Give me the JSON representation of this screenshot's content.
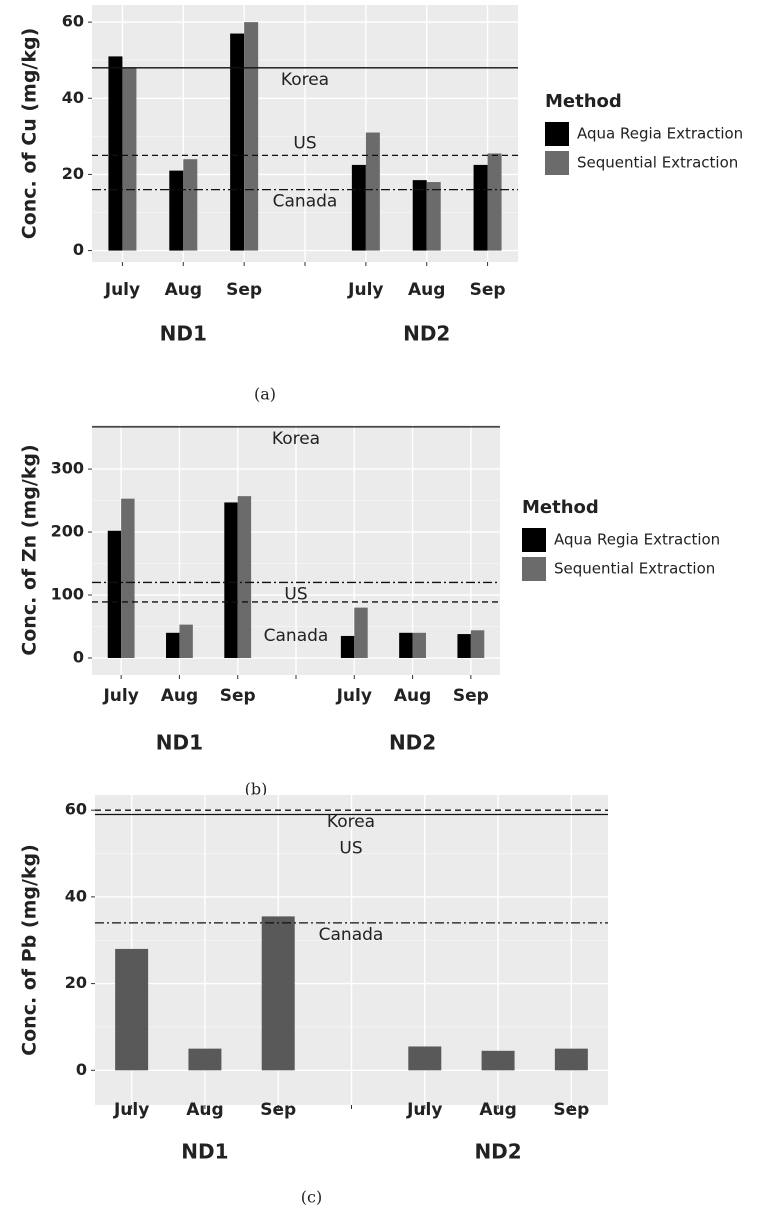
{
  "chart_data": [
    {
      "type": "bar",
      "y_label": "Conc. of Cu (mg/kg)",
      "caption": "(a)",
      "categories": [
        "July",
        "Aug",
        "Sep",
        null,
        "July",
        "Aug",
        "Sep"
      ],
      "groups": [
        "ND1",
        "ND2"
      ],
      "legend_title": "Method",
      "series": [
        {
          "name": "Aqua Regia Extraction",
          "color": "#000000",
          "values": [
            51,
            21,
            57,
            null,
            22.5,
            18.5,
            22.5
          ]
        },
        {
          "name": "Sequential Extraction",
          "color": "#6b6b6b",
          "values": [
            48,
            24,
            60,
            null,
            31,
            18,
            25.5
          ]
        }
      ],
      "reference_lines": [
        {
          "label": "Korea",
          "value": 48,
          "style": "solid",
          "label_side": "below"
        },
        {
          "label": "US",
          "value": 25,
          "style": "dashed",
          "label_side": "above"
        },
        {
          "label": "Canada",
          "value": 16,
          "style": "dashdot",
          "label_side": "below"
        }
      ],
      "ylim": [
        -3,
        64.5
      ],
      "yticks": [
        0,
        20,
        40,
        60
      ],
      "grid": true
    },
    {
      "type": "bar",
      "y_label": "Conc. of Zn (mg/kg)",
      "caption": "(b)",
      "categories": [
        "July",
        "Aug",
        "Sep",
        null,
        "July",
        "Aug",
        "Sep"
      ],
      "groups": [
        "ND1",
        "ND2"
      ],
      "legend_title": "Method",
      "series": [
        {
          "name": "Aqua Regia Extraction",
          "color": "#000000",
          "values": [
            202,
            40,
            247,
            null,
            35,
            40,
            38
          ]
        },
        {
          "name": "Sequential Extraction",
          "color": "#6b6b6b",
          "values": [
            253,
            53,
            257,
            null,
            80,
            40,
            44
          ]
        }
      ],
      "reference_lines": [
        {
          "label": "Korea",
          "value": 367,
          "style": "solid",
          "label_side": "below"
        },
        {
          "label": "US",
          "value": 120,
          "style": "dashdot",
          "label_side": "below"
        },
        {
          "label": "Canada",
          "value": 89,
          "style": "dashed",
          "label_side": "below"
        }
      ],
      "ylim": [
        -27,
        370
      ],
      "yticks": [
        0,
        100,
        200,
        300
      ],
      "grid": true
    },
    {
      "type": "bar",
      "y_label": "Conc. of Pb (mg/kg)",
      "caption": "(c)",
      "categories": [
        "July",
        "Aug",
        "Sep",
        null,
        "July",
        "Aug",
        "Sep"
      ],
      "groups": [
        "ND1",
        "ND2"
      ],
      "values": [
        28,
        5,
        35.5,
        null,
        5.5,
        4.5,
        5
      ],
      "color": "#595959",
      "reference_lines": [
        {
          "label": "Korea",
          "value": 60,
          "style": "dashed",
          "label_side": "below"
        },
        {
          "label": "US",
          "value": 59,
          "style": "solid",
          "label_side": "below"
        },
        {
          "label": "Canada",
          "value": 34,
          "style": "dashdot",
          "label_side": "below"
        }
      ],
      "ylim": [
        -8,
        63.5
      ],
      "yticks": [
        0,
        20,
        40,
        60
      ],
      "grid": true
    }
  ]
}
